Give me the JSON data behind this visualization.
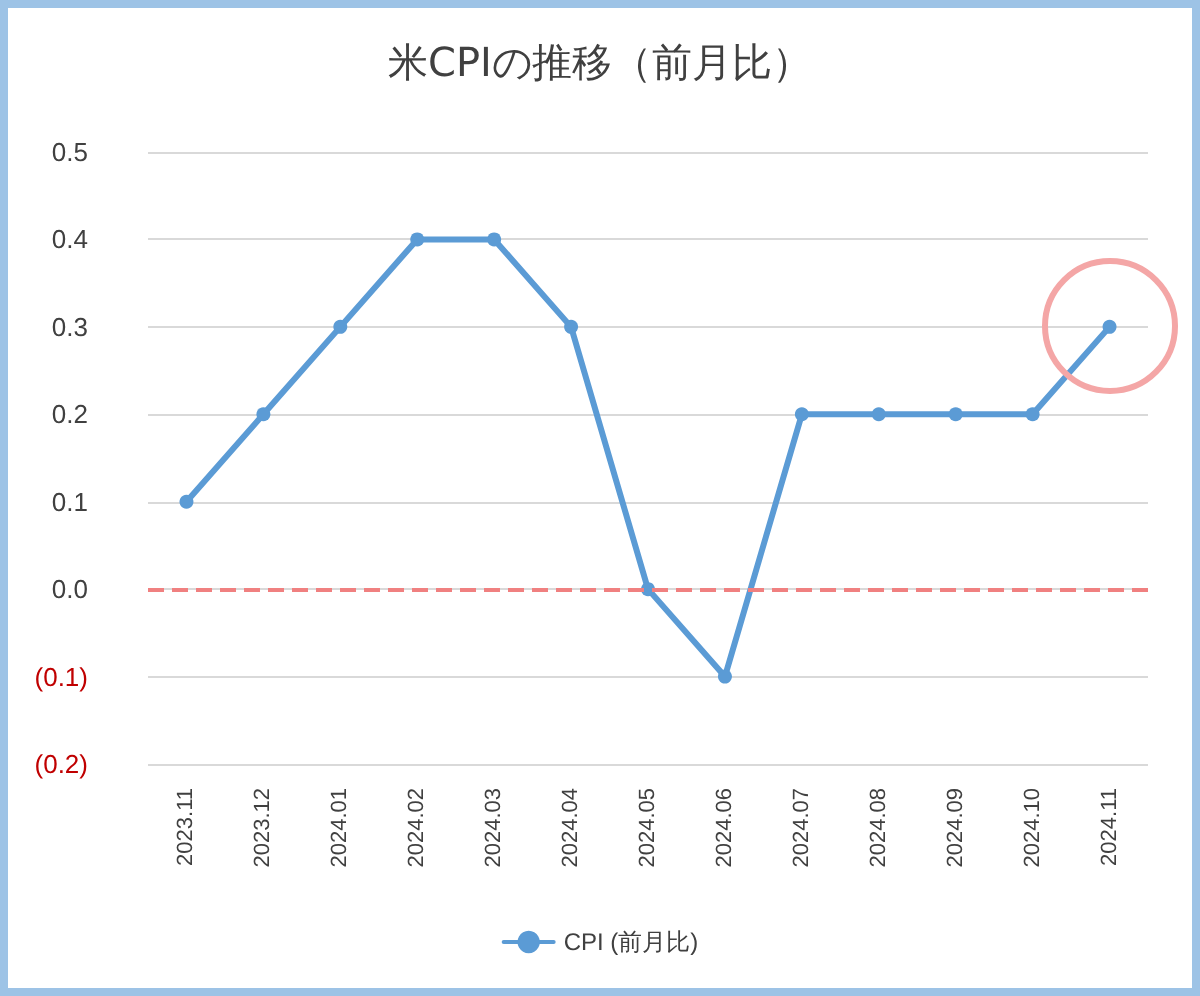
{
  "chart_data": {
    "type": "line",
    "title": "米CPIの推移（前月比）",
    "categories": [
      "2023.11",
      "2023.12",
      "2024.01",
      "2024.02",
      "2024.03",
      "2024.04",
      "2024.05",
      "2024.06",
      "2024.07",
      "2024.08",
      "2024.09",
      "2024.10",
      "2024.11"
    ],
    "series": [
      {
        "name": "CPI (前月比)",
        "color": "#5b9bd5",
        "values": [
          0.1,
          0.2,
          0.3,
          0.4,
          0.4,
          0.3,
          0.0,
          -0.1,
          0.2,
          0.2,
          0.2,
          0.2,
          0.3
        ]
      }
    ],
    "ylim": [
      -0.2,
      0.5
    ],
    "yticks": [
      {
        "value": -0.2,
        "label": "(0.2)"
      },
      {
        "value": -0.1,
        "label": "(0.1)"
      },
      {
        "value": 0,
        "label": "0.0"
      },
      0.1,
      0.2,
      0.3,
      0.4,
      0.5
    ],
    "ref_lines": [
      {
        "axis": "y",
        "value": 0,
        "color": "#f08080",
        "line_style": "dashed"
      }
    ],
    "grid": "y",
    "legend": "bottom",
    "marker": "circle",
    "line_style": "solid"
  }
}
